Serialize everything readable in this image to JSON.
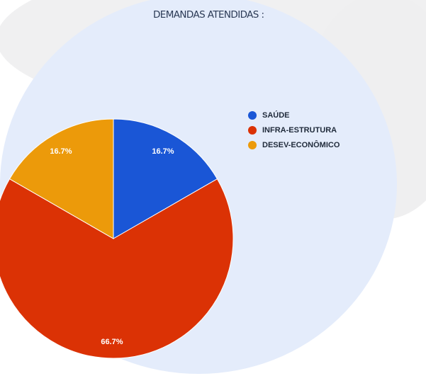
{
  "chart_data": {
    "type": "pie",
    "title": "DEMANDAS ATENDIDAS :",
    "slices": [
      {
        "label": "SAÚDE",
        "value": 16.7,
        "value_label": "16.7%",
        "color": "#1a56d6"
      },
      {
        "label": "INFRA-ESTRUTURA",
        "value": 66.7,
        "value_label": "66.7%",
        "color": "#db3205"
      },
      {
        "label": "DESEV-ECONÔMICO",
        "value": 16.7,
        "value_label": "16.7%",
        "color": "#ec9a0a"
      }
    ],
    "legend_position": "top-right",
    "start_angle": "12 o'clock, clockwise"
  }
}
